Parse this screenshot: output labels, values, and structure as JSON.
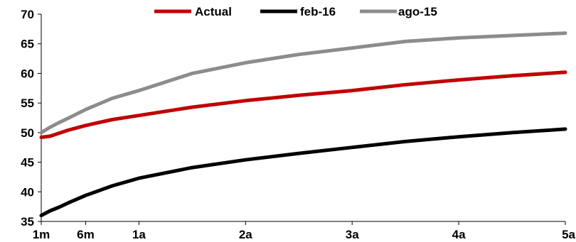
{
  "chart_data": {
    "type": "line",
    "title": "",
    "xlabel": "",
    "ylabel": "",
    "ylim": [
      35,
      70
    ],
    "yticks": [
      "35",
      "40",
      "45",
      "50",
      "55",
      "60",
      "65",
      "70"
    ],
    "xlim": [
      1,
      60
    ],
    "xticks": [
      {
        "label": "1m",
        "value": 1
      },
      {
        "label": "6m",
        "value": 6
      },
      {
        "label": "1a",
        "value": 12
      },
      {
        "label": "2a",
        "value": 24
      },
      {
        "label": "3a",
        "value": 36
      },
      {
        "label": "4a",
        "value": 48
      },
      {
        "label": "5a",
        "value": 60
      }
    ],
    "legend_position": "top",
    "grid": false,
    "series": [
      {
        "name": "Actual",
        "color": "#c00000",
        "x": [
          1,
          2,
          3,
          4,
          6,
          9,
          12,
          18,
          24,
          30,
          36,
          42,
          48,
          54,
          60
        ],
        "y": [
          49.2,
          49.4,
          49.9,
          50.4,
          51.2,
          52.2,
          52.9,
          54.3,
          55.4,
          56.3,
          57.1,
          58.1,
          58.9,
          59.6,
          60.2
        ]
      },
      {
        "name": "feb-16",
        "color": "#000000",
        "x": [
          1,
          2,
          3,
          4,
          6,
          9,
          12,
          18,
          24,
          30,
          36,
          42,
          48,
          54,
          60
        ],
        "y": [
          36.0,
          36.8,
          37.4,
          38.1,
          39.4,
          41.0,
          42.3,
          44.1,
          45.4,
          46.5,
          47.5,
          48.5,
          49.3,
          50.0,
          50.6
        ]
      },
      {
        "name": "ago-15",
        "color": "#8c8c8c",
        "x": [
          1,
          2,
          3,
          4,
          6,
          9,
          12,
          18,
          24,
          30,
          36,
          42,
          48,
          54,
          60
        ],
        "y": [
          50.0,
          50.9,
          51.7,
          52.4,
          53.9,
          55.8,
          57.1,
          60.0,
          61.8,
          63.2,
          64.3,
          65.4,
          66.0,
          66.4,
          66.8
        ]
      }
    ]
  }
}
